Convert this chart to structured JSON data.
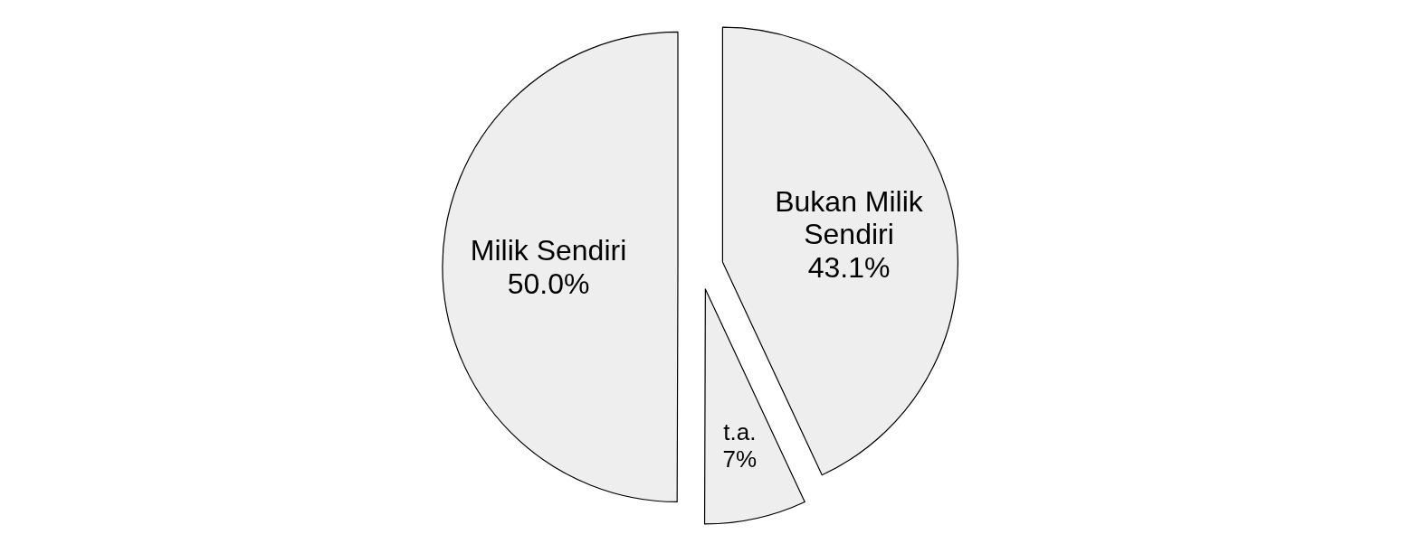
{
  "chart_data": {
    "type": "pie",
    "categories": [
      "Bukan Milik Sendiri",
      "t.a.",
      "Milik Sendiri"
    ],
    "values": [
      43.1,
      7,
      50.0
    ],
    "value_labels": [
      "43.1%",
      "7%",
      "50.0%"
    ],
    "colors": [
      "#eeeeee",
      "#eeeeee",
      "#eeeeee"
    ]
  }
}
